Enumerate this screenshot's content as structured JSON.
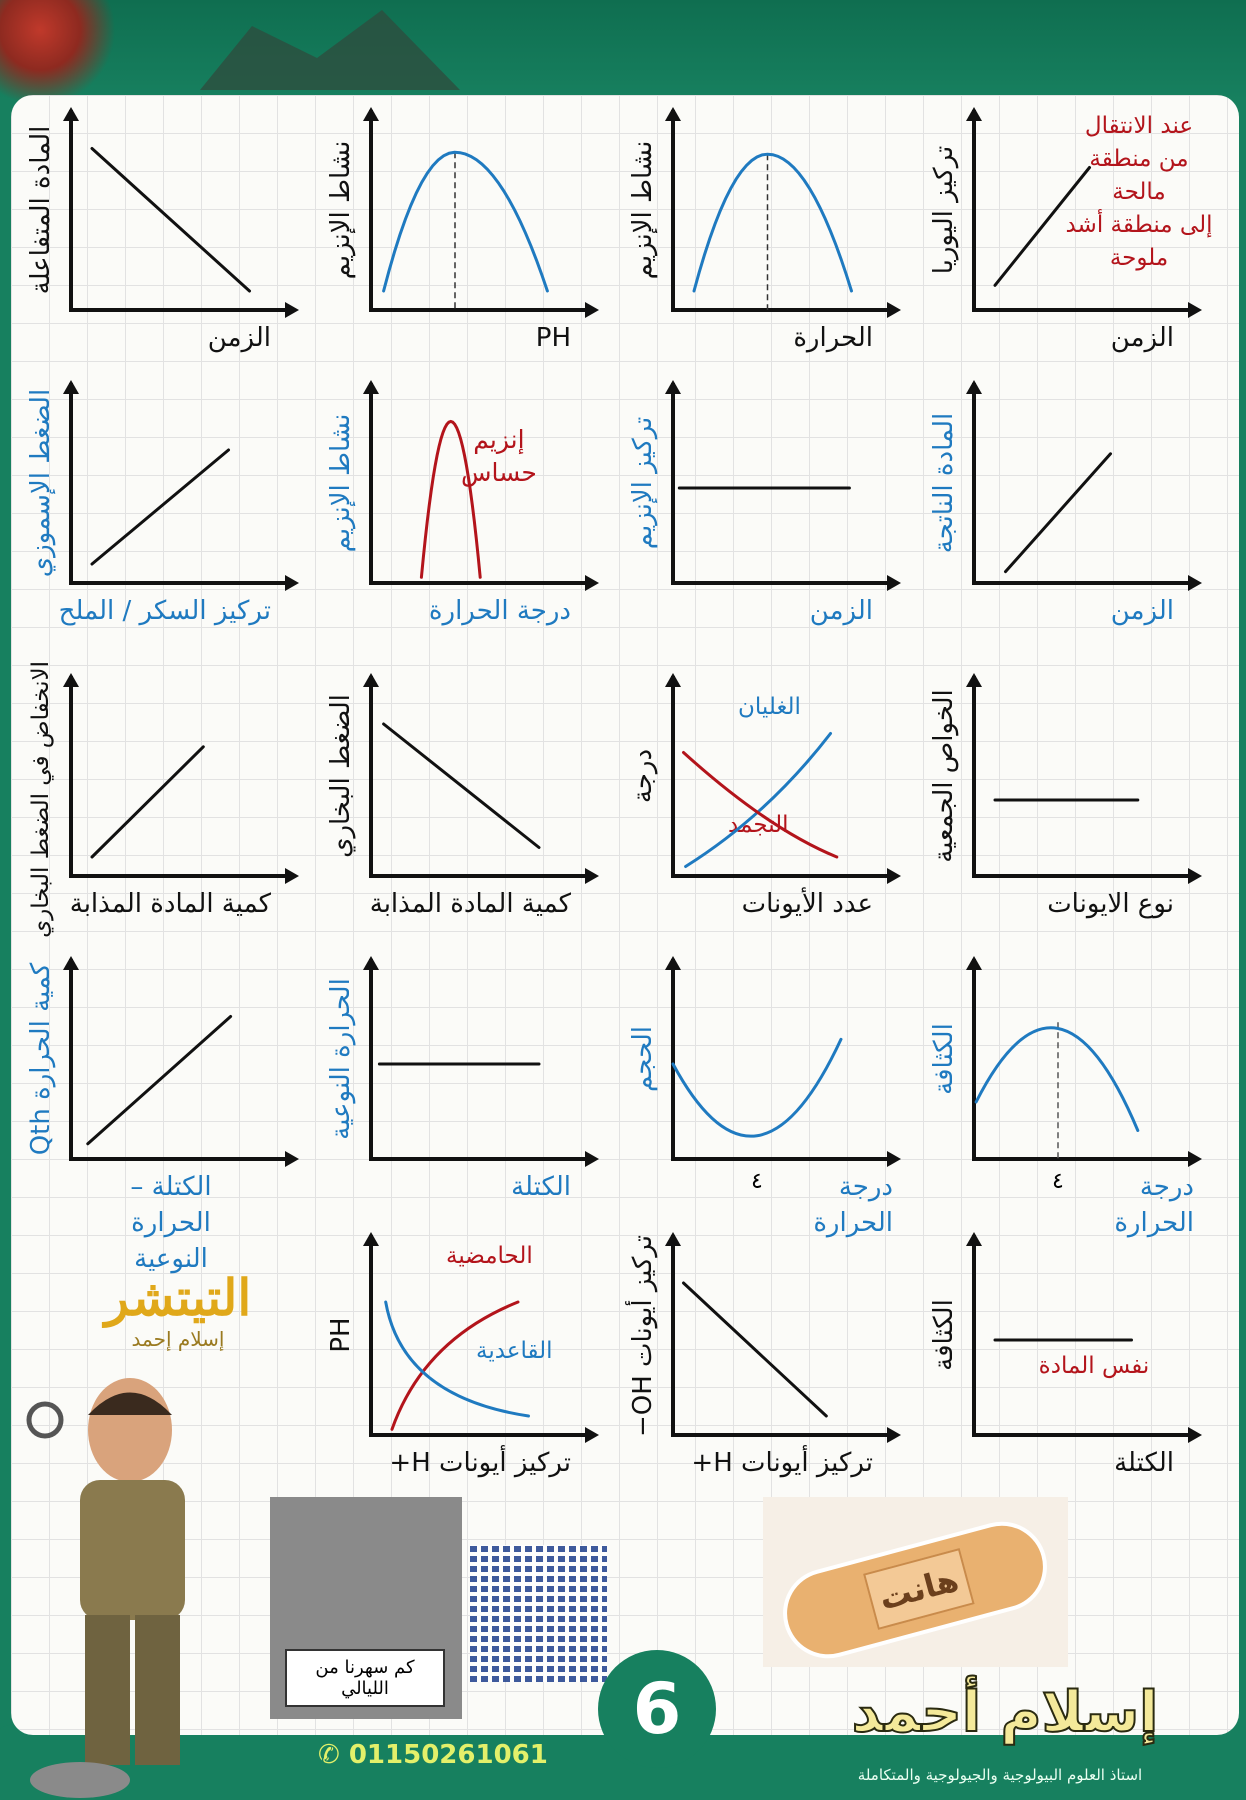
{
  "colors": {
    "black": "#111111",
    "blue": "#1f7ac0",
    "red": "#b3141b",
    "brand_green": "#17805f"
  },
  "chart_data": [
    {
      "type": "line",
      "ylabel": "المادة المتفاعلة",
      "xlabel": "الزمن",
      "label_color": "black",
      "curves": [
        {
          "shape": "line",
          "color": "black",
          "points": [
            [
              1,
              8.5
            ],
            [
              8.5,
              1
            ]
          ]
        }
      ]
    },
    {
      "type": "line",
      "ylabel": "نشاط الإنزيم",
      "xlabel": "PH",
      "label_color": "black",
      "curves": [
        {
          "shape": "peak",
          "color": "blue",
          "from": 0.6,
          "to": 8.4,
          "base": 1,
          "peak": [
            4,
            8.3
          ],
          "dashed_peak": true
        }
      ]
    },
    {
      "type": "line",
      "ylabel": "نشاط الإنزيم",
      "xlabel": "الحرارة",
      "label_color": "black",
      "curves": [
        {
          "shape": "peak",
          "color": "blue",
          "from": 1,
          "to": 8.5,
          "base": 1,
          "peak": [
            4.5,
            8.2
          ],
          "dashed_peak": true
        }
      ]
    },
    {
      "type": "line",
      "ylabel": "تركيز اليوريا",
      "xlabel": "الزمن",
      "label_color": "black",
      "curves": [
        {
          "shape": "line",
          "color": "black",
          "points": [
            [
              1,
              1.3
            ],
            [
              5.5,
              7.5
            ]
          ]
        }
      ],
      "annotation": {
        "text": "عند الانتقال\nمن منطقة\nمالحة\nإلى منطقة أشد\nملوحة",
        "color": "red"
      }
    },
    {
      "type": "line",
      "ylabel": "الضغط الإسموزي",
      "xlabel": "تركيز السكر / الملح",
      "label_color": "blue",
      "curves": [
        {
          "shape": "line",
          "color": "black",
          "points": [
            [
              1,
              1
            ],
            [
              7.5,
              7
            ]
          ]
        }
      ]
    },
    {
      "type": "line",
      "ylabel": "نشاط الإنزيم",
      "xlabel": "درجة الحرارة",
      "label_color": "blue",
      "curves": [
        {
          "shape": "peak",
          "color": "red",
          "from": 2.4,
          "to": 5.2,
          "base": 0.3,
          "peak": [
            3.8,
            8.5
          ],
          "dashed_peak": false
        }
      ],
      "annotation": {
        "text": "إنزيم\nحساس",
        "color": "red"
      }
    },
    {
      "type": "line",
      "ylabel": "تركيز الإنزيم",
      "xlabel": "الزمن",
      "label_color": "blue",
      "curves": [
        {
          "shape": "line",
          "color": "black",
          "points": [
            [
              0.3,
              5
            ],
            [
              8.4,
              5
            ]
          ]
        }
      ]
    },
    {
      "type": "line",
      "ylabel": "المادة الناتجة",
      "xlabel": "الزمن",
      "label_color": "blue",
      "curves": [
        {
          "shape": "line",
          "color": "black",
          "points": [
            [
              1.5,
              0.6
            ],
            [
              6.5,
              6.8
            ]
          ]
        }
      ]
    },
    {
      "type": "line",
      "ylabel": "الانخفاض في الضغط البخاري",
      "xlabel": "كمية المادة المذابة",
      "label_color": "black",
      "curves": [
        {
          "shape": "line",
          "color": "black",
          "points": [
            [
              1,
              1
            ],
            [
              6.3,
              6.8
            ]
          ]
        }
      ]
    },
    {
      "type": "line",
      "ylabel": "الضغط البخاري",
      "xlabel": "كمية المادة المذابة",
      "label_color": "black",
      "curves": [
        {
          "shape": "line",
          "color": "black",
          "points": [
            [
              0.6,
              8
            ],
            [
              8,
              1.5
            ]
          ]
        }
      ]
    },
    {
      "type": "line",
      "ylabel": "درجة",
      "xlabel": "عدد الأيونات",
      "label_color": "black",
      "curves": [
        {
          "shape": "quad",
          "color": "blue",
          "name": "الغليان",
          "points": [
            [
              0.6,
              0.5
            ],
            [
              4.5,
              3.2
            ],
            [
              7.5,
              7.5
            ]
          ]
        },
        {
          "shape": "quad",
          "color": "red",
          "name": "التجمد",
          "points": [
            [
              0.5,
              6.5
            ],
            [
              4.5,
              2.5
            ],
            [
              7.8,
              1
            ]
          ]
        }
      ]
    },
    {
      "type": "line",
      "ylabel": "الخواص الجمعية",
      "xlabel": "نوع الايونات",
      "label_color": "black",
      "curves": [
        {
          "shape": "line",
          "color": "black",
          "points": [
            [
              1,
              4
            ],
            [
              7.8,
              4
            ]
          ]
        }
      ]
    },
    {
      "type": "line",
      "ylabel": "كمية الحرارة Qth",
      "xlabel": "الكتلة – الحرارة النوعية",
      "label_color": "blue",
      "curves": [
        {
          "shape": "line",
          "color": "black",
          "points": [
            [
              0.8,
              0.8
            ],
            [
              7.6,
              7.5
            ]
          ]
        }
      ]
    },
    {
      "type": "line",
      "ylabel": "الحرارة النوعية",
      "xlabel": "الكتلة",
      "label_color": "blue",
      "curves": [
        {
          "shape": "line",
          "color": "black",
          "points": [
            [
              0.4,
              5
            ],
            [
              8,
              5
            ]
          ]
        }
      ]
    },
    {
      "type": "line",
      "ylabel": "الحجم",
      "xlabel": "درجة الحرارة",
      "label_color": "blue",
      "curves": [
        {
          "shape": "quad",
          "color": "blue",
          "points": [
            [
              0,
              5
            ],
            [
              4,
              -3.2
            ],
            [
              8,
              6.3
            ]
          ]
        }
      ],
      "xtick": "٤"
    },
    {
      "type": "line",
      "ylabel": "الكثافة",
      "xlabel": "درجة الحرارة",
      "label_color": "blue",
      "curves": [
        {
          "shape": "quad",
          "color": "blue",
          "points": [
            [
              0.1,
              3
            ],
            [
              4,
              11.5
            ],
            [
              7.8,
              1.5
            ]
          ],
          "dashed_x": 4
        }
      ],
      "xtick": "٤"
    },
    null,
    {
      "type": "line",
      "ylabel": "PH",
      "xlabel": "تركيز أيونات H+",
      "label_color": "black",
      "curves": [
        {
          "shape": "quad",
          "color": "red",
          "name": "الحامضية",
          "points": [
            [
              1,
              0.3
            ],
            [
              2.5,
              5
            ],
            [
              7,
              7
            ]
          ]
        },
        {
          "shape": "quad",
          "color": "blue",
          "name": "القاعدية",
          "points": [
            [
              0.7,
              7
            ],
            [
              1.5,
              2
            ],
            [
              7.5,
              1
            ]
          ]
        }
      ]
    },
    {
      "type": "line",
      "ylabel": "تركيز أيونات OH−",
      "xlabel": "تركيز أيونات H+",
      "label_color": "black",
      "curves": [
        {
          "shape": "line",
          "color": "black",
          "points": [
            [
              0.5,
              8
            ],
            [
              7.3,
              1
            ]
          ]
        }
      ]
    },
    {
      "type": "line",
      "ylabel": "الكثافة",
      "xlabel": "الكتلة",
      "label_color": "black",
      "curves": [
        {
          "shape": "line",
          "color": "black",
          "points": [
            [
              1,
              5
            ],
            [
              7.5,
              5
            ]
          ]
        }
      ],
      "annotation": {
        "text": "نفس المادة",
        "color": "red"
      }
    }
  ],
  "logo": {
    "title": "التيتشر",
    "name": "إسلام إحمد"
  },
  "sticker_caption": "كم سهرنا من الليالي",
  "bandage_text": "هانت",
  "page_number": "6",
  "phone": "01150261061",
  "brand": {
    "name": "إسلام أحمد",
    "subtitle": "استاذ العلوم البيولوجية والجيولوجية والمتكاملة"
  }
}
